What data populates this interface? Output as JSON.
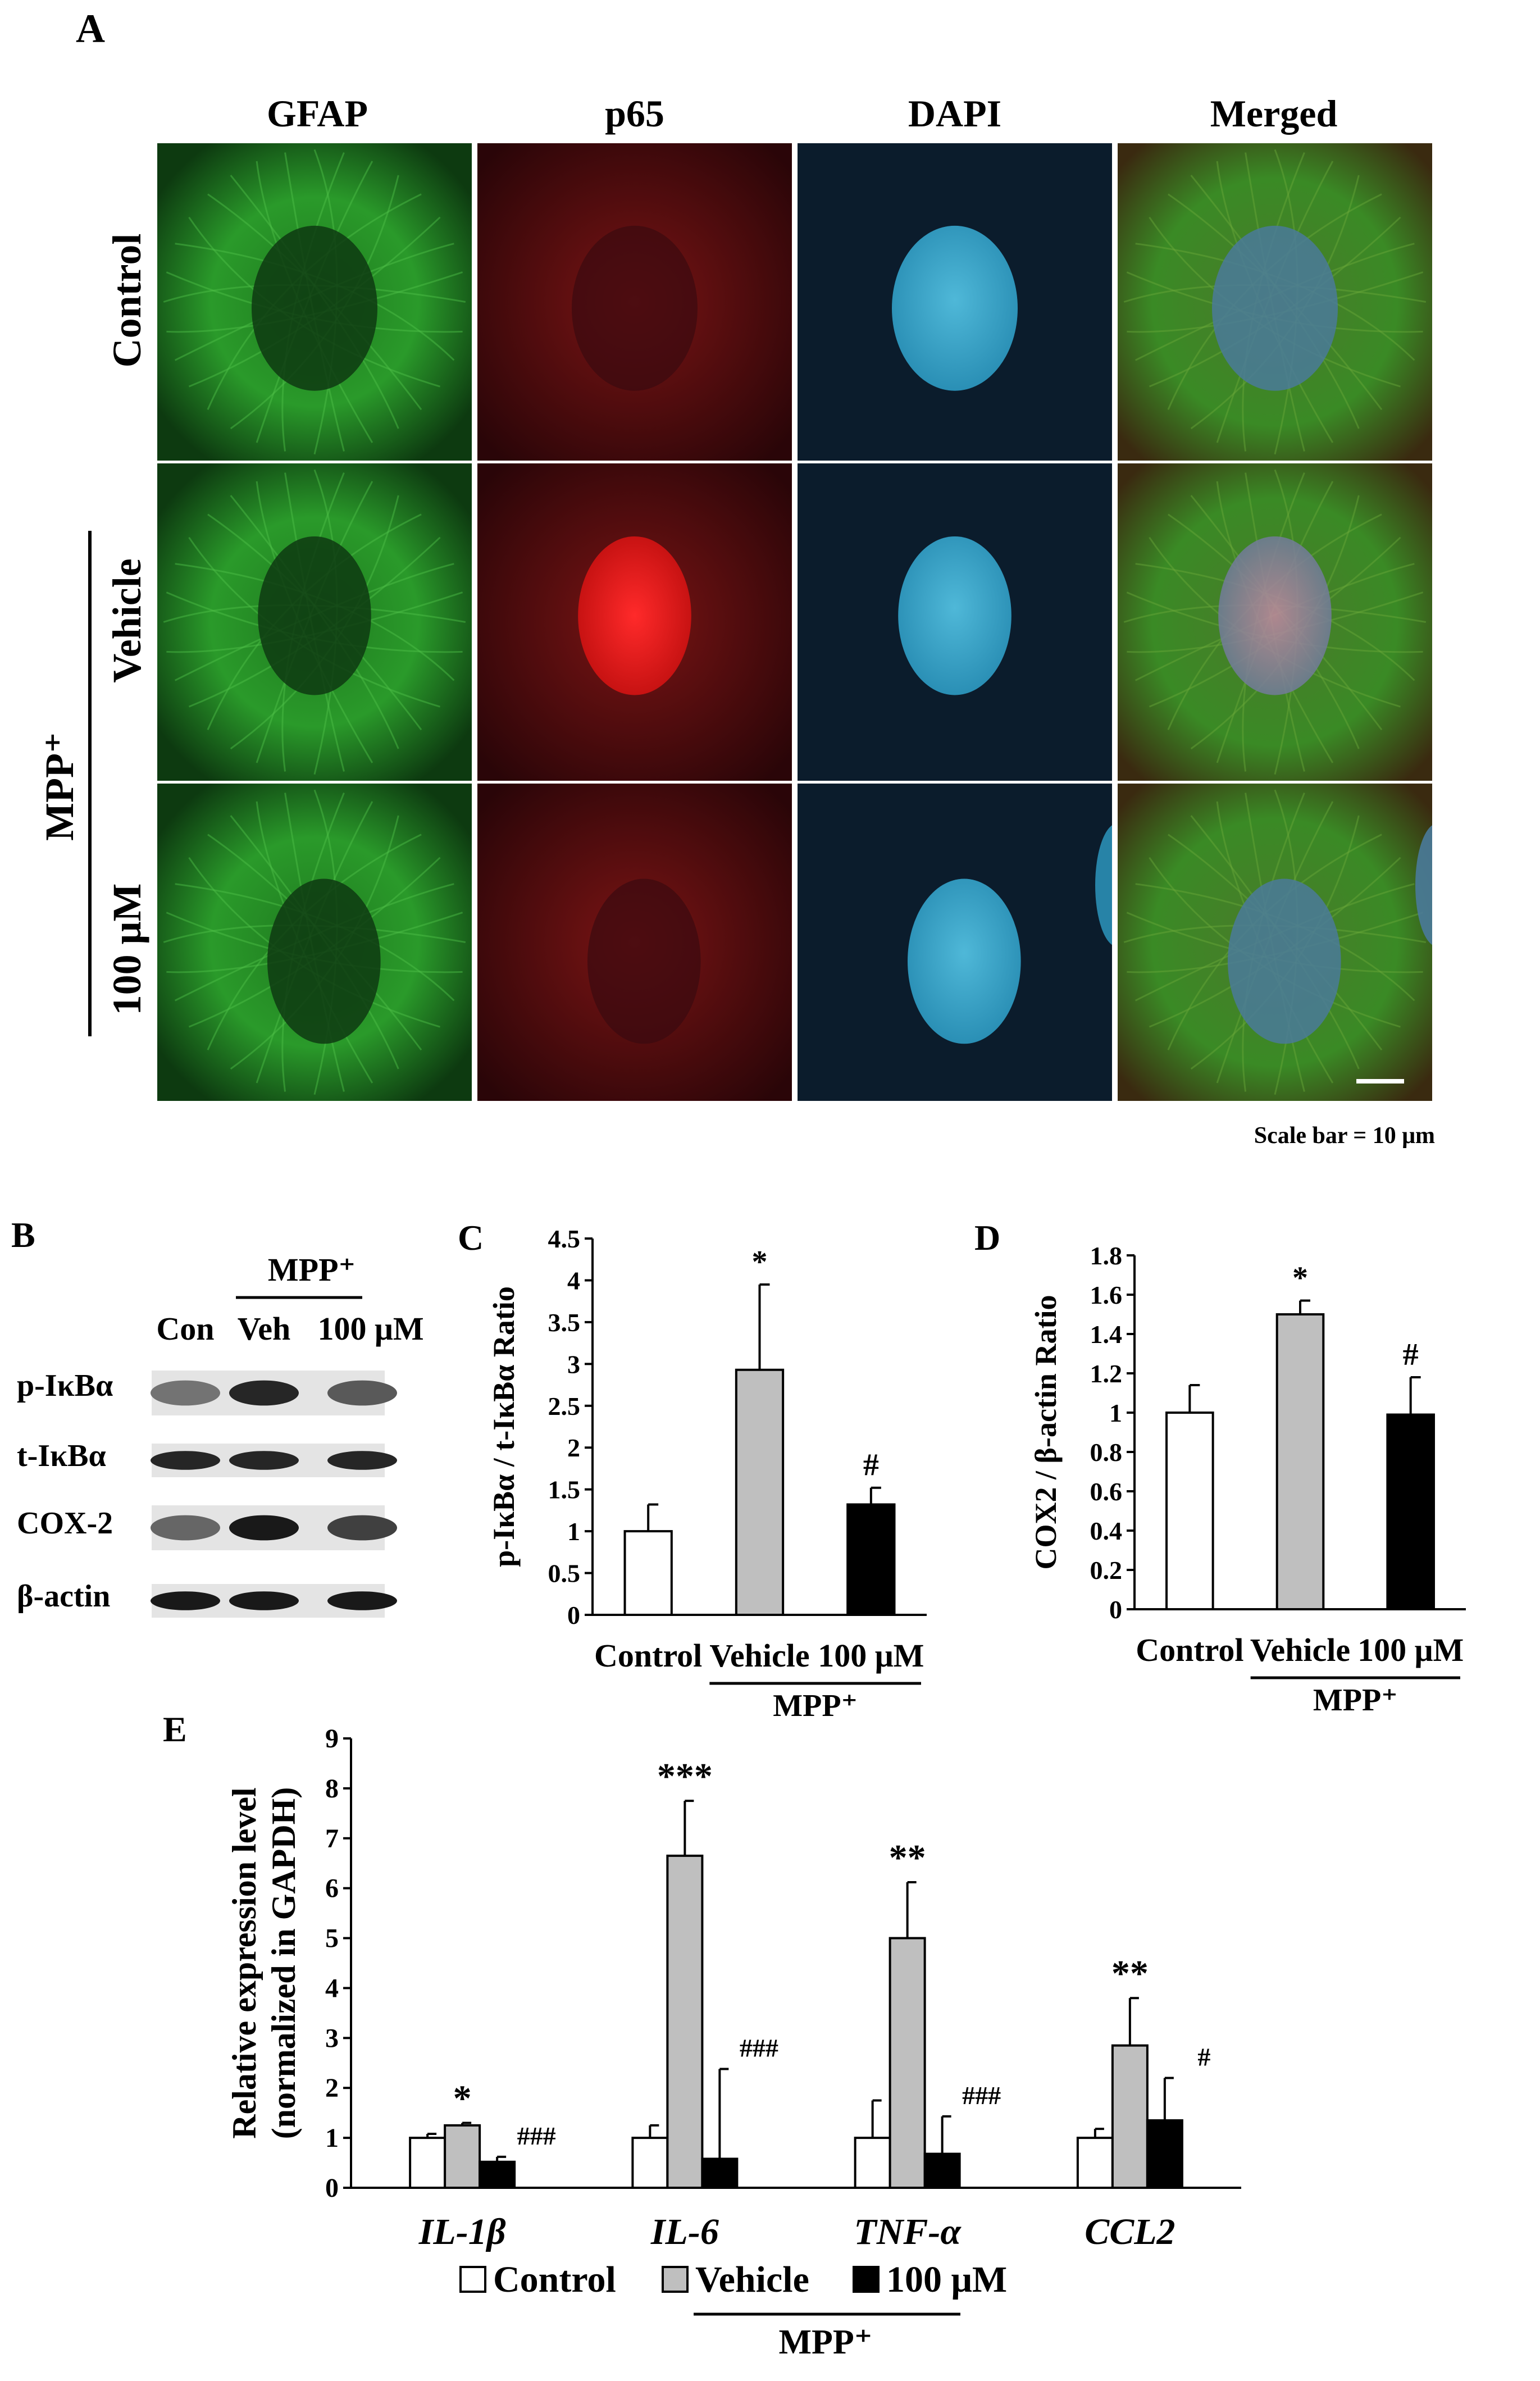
{
  "panel_letters": {
    "a": "A",
    "b": "B",
    "c": "C",
    "d": "D",
    "e": "E"
  },
  "panel_a": {
    "columns": [
      "GFAP",
      "p65",
      "DAPI",
      "Merged"
    ],
    "rows": [
      "Control",
      "Vehicle",
      "100 μM"
    ],
    "group_label": "MPP⁺",
    "scale_bar": "Scale bar = 10 μm",
    "colors": {
      "gfap": "#2f9a2a",
      "p65": "#8a1a1a",
      "dapi": "#3aa7c8",
      "background": "#0d1f2e"
    }
  },
  "panel_b": {
    "group_label": "MPP⁺",
    "lanes": [
      "Con",
      "Veh",
      "100 μM"
    ],
    "bands": [
      "p-IκBα",
      "t-IκBα",
      "COX-2",
      "β-actin"
    ]
  },
  "chart_data": [
    {
      "panel": "C",
      "type": "bar",
      "ylabel": "p-IκBα / t-IκBα Ratio",
      "ylim": [
        0,
        4.5
      ],
      "yticks": [
        "0",
        "0.5",
        "1",
        "1.5",
        "2",
        "2.5",
        "3",
        "3.5",
        "4",
        "4.5"
      ],
      "categories": [
        "Control",
        "Vehicle",
        "100 μM"
      ],
      "values": [
        1.0,
        2.93,
        1.32
      ],
      "errors": [
        0.32,
        1.02,
        0.2
      ],
      "annotations": [
        "",
        "*",
        "#"
      ],
      "colors": [
        "#ffffff",
        "#bfbfbf",
        "#000000"
      ],
      "group_label": "MPP⁺"
    },
    {
      "panel": "D",
      "type": "bar",
      "ylabel": "COX2 / β-actin Ratio",
      "ylim": [
        0,
        1.8
      ],
      "yticks": [
        "0",
        "0.2",
        "0.4",
        "0.6",
        "0.8",
        "1",
        "1.2",
        "1.4",
        "1.6",
        "1.8"
      ],
      "categories": [
        "Control",
        "Vehicle",
        "100 μM"
      ],
      "values": [
        1.0,
        1.5,
        0.99
      ],
      "errors": [
        0.14,
        0.07,
        0.19
      ],
      "annotations": [
        "",
        "*",
        "#"
      ],
      "colors": [
        "#ffffff",
        "#bfbfbf",
        "#000000"
      ],
      "group_label": "MPP⁺"
    },
    {
      "panel": "E",
      "type": "bar",
      "ylabel_line1": "Relative expression level",
      "ylabel_line2": "(normalized in GAPDH)",
      "ylim": [
        0,
        9
      ],
      "yticks": [
        "0",
        "1",
        "2",
        "3",
        "4",
        "5",
        "6",
        "7",
        "8",
        "9"
      ],
      "categories": [
        "IL-1β",
        "IL-6",
        "TNF-α",
        "CCL2"
      ],
      "series": [
        {
          "name": "Control",
          "color": "#ffffff",
          "values": [
            1.0,
            1.0,
            1.0,
            1.0
          ],
          "errors": [
            0.08,
            0.25,
            0.75,
            0.18
          ],
          "annotations": [
            "",
            "",
            "",
            ""
          ]
        },
        {
          "name": "Vehicle",
          "color": "#bfbfbf",
          "values": [
            1.25,
            6.65,
            5.0,
            2.85
          ],
          "errors": [
            0.05,
            1.1,
            1.12,
            0.95
          ],
          "annotations": [
            "*",
            "***",
            "**",
            "**"
          ]
        },
        {
          "name": "100 μM",
          "color": "#000000",
          "values": [
            0.52,
            0.58,
            0.68,
            1.35
          ],
          "errors": [
            0.1,
            1.8,
            0.75,
            0.85
          ],
          "annotations": [
            "###",
            "###",
            "###",
            "#"
          ]
        }
      ],
      "legend_group_label": "MPP⁺",
      "legend_position": "bottom"
    }
  ]
}
